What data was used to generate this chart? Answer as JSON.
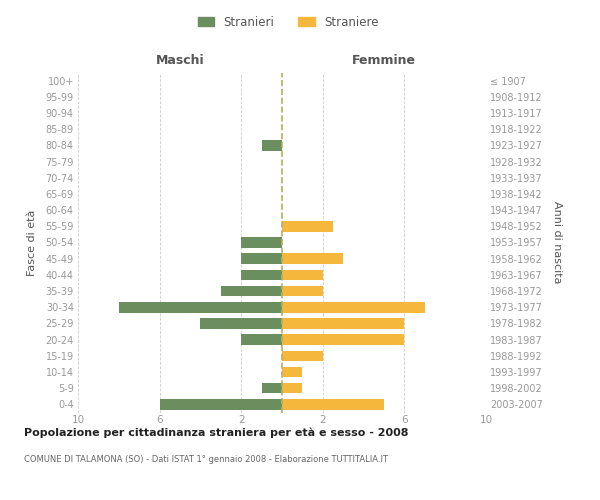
{
  "age_groups": [
    "0-4",
    "5-9",
    "10-14",
    "15-19",
    "20-24",
    "25-29",
    "30-34",
    "35-39",
    "40-44",
    "45-49",
    "50-54",
    "55-59",
    "60-64",
    "65-69",
    "70-74",
    "75-79",
    "80-84",
    "85-89",
    "90-94",
    "95-99",
    "100+"
  ],
  "birth_years": [
    "2003-2007",
    "1998-2002",
    "1993-1997",
    "1988-1992",
    "1983-1987",
    "1978-1982",
    "1973-1977",
    "1968-1972",
    "1963-1967",
    "1958-1962",
    "1953-1957",
    "1948-1952",
    "1943-1947",
    "1938-1942",
    "1933-1937",
    "1928-1932",
    "1923-1927",
    "1918-1922",
    "1913-1917",
    "1908-1912",
    "≤ 1907"
  ],
  "maschi": [
    6,
    1,
    0,
    0,
    2,
    4,
    8,
    3,
    2,
    2,
    2,
    0,
    0,
    0,
    0,
    0,
    1,
    0,
    0,
    0,
    0
  ],
  "femmine": [
    5,
    1,
    1,
    2,
    6,
    6,
    7,
    2,
    2,
    3,
    0,
    2.5,
    0,
    0,
    0,
    0,
    0,
    0,
    0,
    0,
    0
  ],
  "color_maschi": "#6b8e5e",
  "color_femmine": "#f5b83d",
  "color_center_line": "#b0b060",
  "xlim": 10,
  "title": "Popolazione per cittadinanza straniera per età e sesso - 2008",
  "subtitle": "COMUNE DI TALAMONA (SO) - Dati ISTAT 1° gennaio 2008 - Elaborazione TUTTITALIA.IT",
  "ylabel_left": "Fasce di età",
  "ylabel_right": "Anni di nascita",
  "legend_maschi": "Stranieri",
  "legend_femmine": "Straniere",
  "header_left": "Maschi",
  "header_right": "Femmine",
  "bg_color": "#ffffff",
  "grid_color": "#cccccc",
  "tick_label_color": "#999999",
  "axis_label_color": "#555555",
  "xtick_positions": [
    -10,
    -6,
    -2,
    2,
    6,
    10
  ],
  "xtick_labels": [
    "10",
    "6",
    "2",
    "2",
    "6",
    "10"
  ]
}
